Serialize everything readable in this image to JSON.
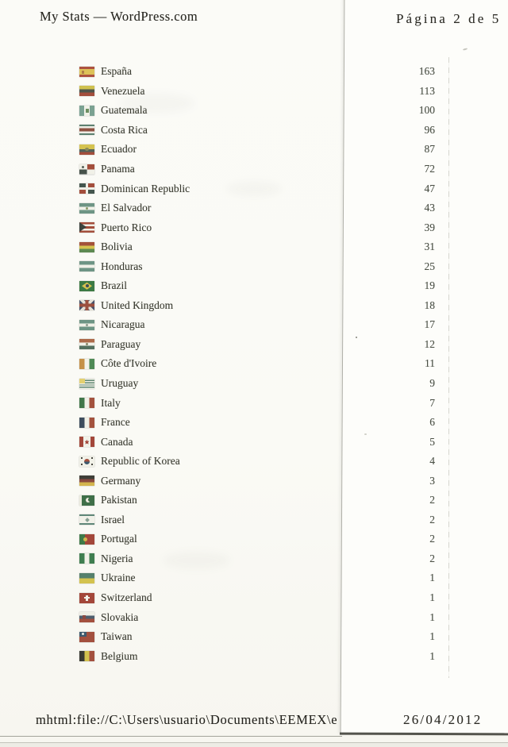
{
  "header": {
    "title": "My Stats — WordPress.com",
    "page_indicator": "Página 2 de 5"
  },
  "footer": {
    "url": "mhtml:file://C:\\Users\\usuario\\Documents\\EEMEX\\e",
    "date": "26/04/2012"
  },
  "countries": {
    "rows": [
      {
        "name": "España",
        "views": "163",
        "flag": "es",
        "icon": "flag-spain-icon"
      },
      {
        "name": "Venezuela",
        "views": "113",
        "flag": "ve",
        "icon": "flag-venezuela-icon"
      },
      {
        "name": "Guatemala",
        "views": "100",
        "flag": "gt",
        "icon": "flag-guatemala-icon"
      },
      {
        "name": "Costa Rica",
        "views": "96",
        "flag": "cr",
        "icon": "flag-costa-rica-icon"
      },
      {
        "name": "Ecuador",
        "views": "87",
        "flag": "ec",
        "icon": "flag-ecuador-icon"
      },
      {
        "name": "Panama",
        "views": "72",
        "flag": "pa",
        "icon": "flag-panama-icon"
      },
      {
        "name": "Dominican Republic",
        "views": "47",
        "flag": "do",
        "icon": "flag-dominican-republic-icon"
      },
      {
        "name": "El Salvador",
        "views": "43",
        "flag": "sv",
        "icon": "flag-el-salvador-icon"
      },
      {
        "name": "Puerto Rico",
        "views": "39",
        "flag": "pr",
        "icon": "flag-puerto-rico-icon"
      },
      {
        "name": "Bolivia",
        "views": "31",
        "flag": "bo",
        "icon": "flag-bolivia-icon"
      },
      {
        "name": "Honduras",
        "views": "25",
        "flag": "hn",
        "icon": "flag-honduras-icon"
      },
      {
        "name": "Brazil",
        "views": "19",
        "flag": "br",
        "icon": "flag-brazil-icon"
      },
      {
        "name": "United Kingdom",
        "views": "18",
        "flag": "gb",
        "icon": "flag-united-kingdom-icon"
      },
      {
        "name": "Nicaragua",
        "views": "17",
        "flag": "ni",
        "icon": "flag-nicaragua-icon"
      },
      {
        "name": "Paraguay",
        "views": "12",
        "flag": "py",
        "icon": "flag-paraguay-icon"
      },
      {
        "name": "Côte d'Ivoire",
        "views": "11",
        "flag": "ci",
        "icon": "flag-cote-divoire-icon"
      },
      {
        "name": "Uruguay",
        "views": "9",
        "flag": "uy",
        "icon": "flag-uruguay-icon"
      },
      {
        "name": "Italy",
        "views": "7",
        "flag": "it",
        "icon": "flag-italy-icon"
      },
      {
        "name": "France",
        "views": "6",
        "flag": "fr",
        "icon": "flag-france-icon"
      },
      {
        "name": "Canada",
        "views": "5",
        "flag": "ca",
        "icon": "flag-canada-icon"
      },
      {
        "name": "Republic of Korea",
        "views": "4",
        "flag": "kr",
        "icon": "flag-south-korea-icon"
      },
      {
        "name": "Germany",
        "views": "3",
        "flag": "de",
        "icon": "flag-germany-icon"
      },
      {
        "name": "Pakistan",
        "views": "2",
        "flag": "pk",
        "icon": "flag-pakistan-icon"
      },
      {
        "name": "Israel",
        "views": "2",
        "flag": "il",
        "icon": "flag-israel-icon"
      },
      {
        "name": "Portugal",
        "views": "2",
        "flag": "pt",
        "icon": "flag-portugal-icon"
      },
      {
        "name": "Nigeria",
        "views": "2",
        "flag": "ng",
        "icon": "flag-nigeria-icon"
      },
      {
        "name": "Ukraine",
        "views": "1",
        "flag": "ua",
        "icon": "flag-ukraine-icon"
      },
      {
        "name": "Switzerland",
        "views": "1",
        "flag": "ch",
        "icon": "flag-switzerland-icon"
      },
      {
        "name": "Slovakia",
        "views": "1",
        "flag": "sk",
        "icon": "flag-slovakia-icon"
      },
      {
        "name": "Taiwan",
        "views": "1",
        "flag": "tw",
        "icon": "flag-taiwan-icon"
      },
      {
        "name": "Belgium",
        "views": "1",
        "flag": "be",
        "icon": "flag-belgium-icon"
      }
    ]
  }
}
